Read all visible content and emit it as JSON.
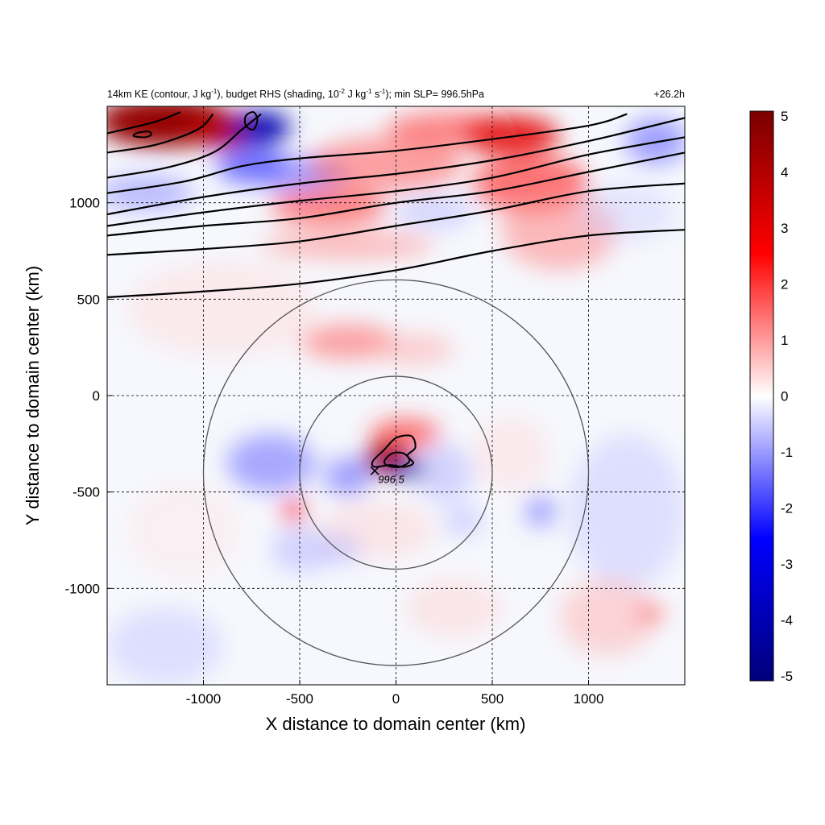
{
  "chart_data": {
    "type": "heatmap",
    "title_parts": {
      "a": "14km KE (contour, J kg",
      "a_sup": "-1",
      "b": "), budget RHS (shading, 10",
      "b_sup": "-2",
      "c": " J kg",
      "c_sup": "-1",
      "d": " s",
      "d_sup": "-1",
      "e": "); min SLP= 996.5hPa"
    },
    "time_label": "+26.2h",
    "xlabel": "X distance to domain center (km)",
    "ylabel": "Y distance to domain center (km)",
    "xlim": [
      -1500,
      1500
    ],
    "ylim": [
      -1500,
      1500
    ],
    "x_ticks": [
      -1000,
      -500,
      0,
      500,
      1000
    ],
    "y_ticks": [
      1000,
      500,
      0,
      -500,
      -1000
    ],
    "x_tick_labels": [
      "-1000",
      "-500",
      "0",
      "500",
      "1000"
    ],
    "y_tick_labels": [
      "1000",
      "500",
      "0",
      "-500",
      "-1000"
    ],
    "grid": "dashed",
    "colorbar": {
      "range": [
        -5,
        5
      ],
      "ticks": [
        "5",
        "4",
        "3",
        "2",
        "1",
        "0",
        "-1",
        "-2",
        "-3",
        "-4",
        "-5"
      ],
      "colors": [
        "#00007a",
        "#0000ff",
        "#ffffff",
        "#ff0000",
        "#7a0000"
      ],
      "placement": "right"
    },
    "center_marker": {
      "x": -110,
      "y": -390,
      "label": "996.5"
    },
    "range_rings_km": [
      500,
      1000
    ],
    "ring_center": {
      "x": 0,
      "y": -400
    },
    "shading_blobs": [
      {
        "x": -1200,
        "y": 1420,
        "rx": 350,
        "ry": 130,
        "v": 4.5
      },
      {
        "x": -900,
        "y": 1380,
        "rx": 200,
        "ry": 90,
        "v": 4
      },
      {
        "x": -700,
        "y": 1390,
        "rx": 150,
        "ry": 80,
        "v": -4
      },
      {
        "x": -750,
        "y": 1200,
        "rx": 180,
        "ry": 100,
        "v": -2
      },
      {
        "x": -1300,
        "y": 1050,
        "rx": 250,
        "ry": 90,
        "v": -1.2
      },
      {
        "x": -500,
        "y": 1150,
        "rx": 250,
        "ry": 90,
        "v": -1.5
      },
      {
        "x": -350,
        "y": 980,
        "rx": 300,
        "ry": 100,
        "v": 1.8
      },
      {
        "x": -250,
        "y": 780,
        "rx": 450,
        "ry": 70,
        "v": 1.2
      },
      {
        "x": -50,
        "y": 1200,
        "rx": 400,
        "ry": 140,
        "v": 1.5
      },
      {
        "x": 300,
        "y": 1380,
        "rx": 350,
        "ry": 90,
        "v": 1.8
      },
      {
        "x": 600,
        "y": 1350,
        "rx": 250,
        "ry": 100,
        "v": 3
      },
      {
        "x": 700,
        "y": 1100,
        "rx": 300,
        "ry": 150,
        "v": 2
      },
      {
        "x": 850,
        "y": 850,
        "rx": 300,
        "ry": 200,
        "v": 1.2
      },
      {
        "x": 1350,
        "y": 1320,
        "rx": 160,
        "ry": 120,
        "v": -1.5
      },
      {
        "x": 1200,
        "y": 950,
        "rx": 250,
        "ry": 150,
        "v": -0.5
      },
      {
        "x": 200,
        "y": 950,
        "rx": 200,
        "ry": 80,
        "v": -0.8
      },
      {
        "x": -900,
        "y": 450,
        "rx": 500,
        "ry": 250,
        "v": 0.4
      },
      {
        "x": -250,
        "y": 280,
        "rx": 250,
        "ry": 90,
        "v": 1.5
      },
      {
        "x": 100,
        "y": 240,
        "rx": 200,
        "ry": 80,
        "v": 0.9
      },
      {
        "x": -650,
        "y": -350,
        "rx": 230,
        "ry": 150,
        "v": -1.4
      },
      {
        "x": -530,
        "y": -600,
        "rx": 60,
        "ry": 60,
        "v": 2.5
      },
      {
        "x": 50,
        "y": -200,
        "rx": 180,
        "ry": 80,
        "v": 2
      },
      {
        "x": -50,
        "y": -330,
        "rx": 110,
        "ry": 80,
        "v": 4.5
      },
      {
        "x": 60,
        "y": -380,
        "rx": 100,
        "ry": 45,
        "v": -4.5
      },
      {
        "x": -250,
        "y": -420,
        "rx": 120,
        "ry": 100,
        "v": -1.5
      },
      {
        "x": 250,
        "y": -400,
        "rx": 150,
        "ry": 150,
        "v": -0.8
      },
      {
        "x": -100,
        "y": -700,
        "rx": 300,
        "ry": 150,
        "v": 0.5
      },
      {
        "x": -500,
        "y": -800,
        "rx": 150,
        "ry": 120,
        "v": -0.8
      },
      {
        "x": -300,
        "y": -800,
        "rx": 120,
        "ry": 80,
        "v": -0.8
      },
      {
        "x": 350,
        "y": -650,
        "rx": 100,
        "ry": 80,
        "v": -0.8
      },
      {
        "x": 1200,
        "y": -600,
        "rx": 300,
        "ry": 400,
        "v": -0.6
      },
      {
        "x": 1100,
        "y": -1150,
        "rx": 250,
        "ry": 200,
        "v": 0.8
      },
      {
        "x": 1320,
        "y": -1130,
        "rx": 60,
        "ry": 40,
        "v": 2.5
      },
      {
        "x": -1200,
        "y": -1300,
        "rx": 300,
        "ry": 200,
        "v": -0.6
      },
      {
        "x": 750,
        "y": -600,
        "rx": 80,
        "ry": 80,
        "v": -1.5
      },
      {
        "x": 300,
        "y": -1100,
        "rx": 250,
        "ry": 150,
        "v": 0.5
      },
      {
        "x": -1100,
        "y": -700,
        "rx": 300,
        "ry": 250,
        "v": 0.3
      },
      {
        "x": 600,
        "y": -300,
        "rx": 200,
        "ry": 200,
        "v": 0.4
      }
    ],
    "ke_contours": [
      {
        "points": [
          [
            -1500,
            510
          ],
          [
            -1000,
            540
          ],
          [
            -500,
            580
          ],
          [
            0,
            650
          ],
          [
            500,
            750
          ],
          [
            1000,
            830
          ],
          [
            1500,
            860
          ]
        ]
      },
      {
        "points": [
          [
            -1500,
            730
          ],
          [
            -1000,
            760
          ],
          [
            -500,
            800
          ],
          [
            0,
            880
          ],
          [
            500,
            960
          ],
          [
            1000,
            1060
          ],
          [
            1500,
            1100
          ]
        ]
      },
      {
        "points": [
          [
            -1500,
            830
          ],
          [
            -1000,
            880
          ],
          [
            -500,
            920
          ],
          [
            0,
            1000
          ],
          [
            500,
            1060
          ],
          [
            1000,
            1160
          ],
          [
            1500,
            1260
          ]
        ]
      },
      {
        "points": [
          [
            -1500,
            880
          ],
          [
            -1000,
            950
          ],
          [
            -500,
            1010
          ],
          [
            0,
            1060
          ],
          [
            500,
            1130
          ],
          [
            1000,
            1250
          ],
          [
            1500,
            1340
          ]
        ]
      },
      {
        "points": [
          [
            -1500,
            940
          ],
          [
            -1000,
            1030
          ],
          [
            -500,
            1100
          ],
          [
            0,
            1150
          ],
          [
            500,
            1220
          ],
          [
            1000,
            1320
          ],
          [
            1500,
            1440
          ]
        ]
      },
      {
        "points": [
          [
            -1500,
            1050
          ],
          [
            -1100,
            1110
          ],
          [
            -800,
            1190
          ],
          [
            -500,
            1230
          ],
          [
            0,
            1270
          ],
          [
            500,
            1330
          ],
          [
            1000,
            1400
          ],
          [
            1200,
            1460
          ]
        ]
      },
      {
        "points": [
          [
            -1500,
            1130
          ],
          [
            -1200,
            1180
          ],
          [
            -950,
            1260
          ],
          [
            -800,
            1380
          ],
          [
            -700,
            1460
          ]
        ]
      },
      {
        "points": [
          [
            -1500,
            1260
          ],
          [
            -1250,
            1300
          ],
          [
            -1030,
            1380
          ],
          [
            -950,
            1460
          ]
        ]
      },
      {
        "points": [
          [
            -1500,
            1360
          ],
          [
            -1250,
            1420
          ],
          [
            -1120,
            1470
          ]
        ]
      }
    ],
    "ke_closed_contours": [
      {
        "points": [
          [
            -1350,
            1360
          ],
          [
            -1290,
            1370
          ],
          [
            -1270,
            1355
          ],
          [
            -1300,
            1340
          ],
          [
            -1360,
            1345
          ]
        ]
      },
      {
        "points": [
          [
            -780,
            1450
          ],
          [
            -740,
            1470
          ],
          [
            -720,
            1430
          ],
          [
            -740,
            1380
          ],
          [
            -780,
            1400
          ]
        ]
      },
      {
        "points": [
          [
            -120,
            -340
          ],
          [
            -60,
            -280
          ],
          [
            0,
            -220
          ],
          [
            80,
            -210
          ],
          [
            100,
            -270
          ],
          [
            60,
            -310
          ],
          [
            90,
            -350
          ],
          [
            40,
            -370
          ],
          [
            -30,
            -360
          ],
          [
            -110,
            -370
          ]
        ]
      },
      {
        "points": [
          [
            -60,
            -340
          ],
          [
            -20,
            -300
          ],
          [
            40,
            -300
          ],
          [
            70,
            -340
          ],
          [
            20,
            -370
          ],
          [
            -40,
            -365
          ]
        ]
      }
    ]
  }
}
